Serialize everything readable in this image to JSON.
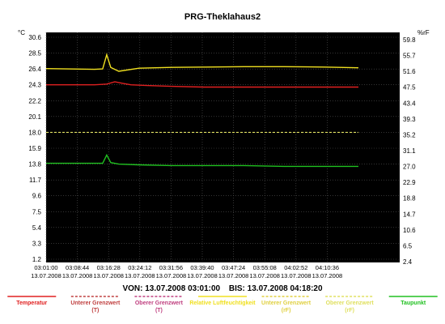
{
  "chart_data": {
    "type": "line",
    "title": "PRG-Theklahaus2",
    "y_left": {
      "unit": "°C",
      "ticks": [
        "30.6",
        "28.5",
        "26.4",
        "24.3",
        "22.2",
        "20.1",
        "18.0",
        "15.9",
        "13.8",
        "11.7",
        "9.6",
        "7.5",
        "5.4",
        "3.3",
        "1.2"
      ],
      "ylim": [
        1.2,
        30.6
      ]
    },
    "y_right": {
      "unit": "%rF",
      "ticks": [
        "59.8",
        "55.7",
        "51.6",
        "47.5",
        "43.4",
        "39.3",
        "35.2",
        "31.1",
        "27.0",
        "22.9",
        "18.8",
        "14.7",
        "10.6",
        "6.5",
        "2.4"
      ],
      "ylim": [
        2.4,
        59.8
      ]
    },
    "x_ticks": [
      {
        "time": "03:01:00",
        "date": "13.07.2008"
      },
      {
        "time": "03:08:44",
        "date": "13.07.2008"
      },
      {
        "time": "03:16:28",
        "date": "13.07.2008"
      },
      {
        "time": "03:24:12",
        "date": "13.07.2008"
      },
      {
        "time": "03:31:56",
        "date": "13.07.2008"
      },
      {
        "time": "03:39:40",
        "date": "13.07.2008"
      },
      {
        "time": "03:47:24",
        "date": "13.07.2008"
      },
      {
        "time": "03:55:08",
        "date": "13.07.2008"
      },
      {
        "time": "04:02:52",
        "date": "13.07.2008"
      },
      {
        "time": "04:10:36",
        "date": "13.07.2008"
      }
    ],
    "range": {
      "von_label": "VON:",
      "von": "13.07.2008 03:01:00",
      "bis_label": "BIS:",
      "bis": "13.07.2008 04:18:20"
    },
    "grid": true,
    "legend_position": "bottom",
    "series": [
      {
        "name": "Temperatur",
        "axis": "left",
        "color": "#e02020",
        "x": [
          "03:01:00",
          "03:13:00",
          "03:16:00",
          "03:18:00",
          "03:20:00",
          "03:22:00",
          "03:26:00",
          "03:32:00",
          "03:40:00",
          "03:50:00",
          "04:00:00",
          "04:10:00",
          "04:18:20"
        ],
        "y": [
          24.3,
          24.3,
          24.4,
          24.7,
          24.5,
          24.3,
          24.2,
          24.1,
          24.0,
          24.0,
          24.0,
          24.0,
          24.0
        ]
      },
      {
        "name": "Relative Luftfeuchtigkeit",
        "axis": "right",
        "color": "#f0e020",
        "x": [
          "03:01:00",
          "03:13:00",
          "03:15:00",
          "03:16:00",
          "03:17:00",
          "03:19:00",
          "03:24:00",
          "03:32:00",
          "03:40:00",
          "03:50:00",
          "04:00:00",
          "04:10:00",
          "04:18:20"
        ],
        "y": [
          51.7,
          51.5,
          51.6,
          55.3,
          52.0,
          51.0,
          51.8,
          52.0,
          52.1,
          52.2,
          52.2,
          52.1,
          51.9
        ]
      },
      {
        "name": "Taupunkt",
        "axis": "left",
        "color": "#20c020",
        "x": [
          "03:01:00",
          "03:13:00",
          "03:15:00",
          "03:16:00",
          "03:17:00",
          "03:19:00",
          "03:24:00",
          "03:32:00",
          "03:40:00",
          "03:50:00",
          "04:00:00",
          "04:10:00",
          "04:18:20"
        ],
        "y": [
          13.9,
          13.9,
          13.9,
          15.0,
          14.0,
          13.8,
          13.7,
          13.6,
          13.6,
          13.6,
          13.5,
          13.5,
          13.5
        ]
      },
      {
        "name": "Unterer Grenzwert (T)",
        "axis": "left",
        "color": "#c04040",
        "y": [],
        "x": []
      },
      {
        "name": "Oberer Grenzwert (T)",
        "axis": "left",
        "color": "#c04080",
        "y": [],
        "x": []
      },
      {
        "name": "Unterer Grenzwert (rF)",
        "axis": "right",
        "color": "#e0d040",
        "y": [],
        "x": []
      },
      {
        "name": "Oberer Grenzwert (rF)",
        "axis": "right",
        "color": "#e0e060",
        "x": [
          "03:01:00",
          "04:18:20"
        ],
        "y": [
          35.2,
          35.2
        ]
      }
    ]
  },
  "legend": [
    {
      "line1": "Temperatur",
      "line2": "",
      "color": "#e02020",
      "style": "solid"
    },
    {
      "line1": "Unterer Grenzwert",
      "line2": "(T)",
      "color": "#c04040",
      "style": "dashed"
    },
    {
      "line1": "Oberer Grenzwert",
      "line2": "(T)",
      "color": "#c04080",
      "style": "dashed"
    },
    {
      "line1": "Relative Luftfeuchtigkeit",
      "line2": "",
      "color": "#f0e020",
      "style": "solid"
    },
    {
      "line1": "Unterer Grenzwert",
      "line2": "(rF)",
      "color": "#e0d040",
      "style": "dashed"
    },
    {
      "line1": "Oberer Grenzwert",
      "line2": "(rF)",
      "color": "#e0e060",
      "style": "dashed"
    },
    {
      "line1": "Taupunkt",
      "line2": "",
      "color": "#20c020",
      "style": "solid"
    }
  ]
}
